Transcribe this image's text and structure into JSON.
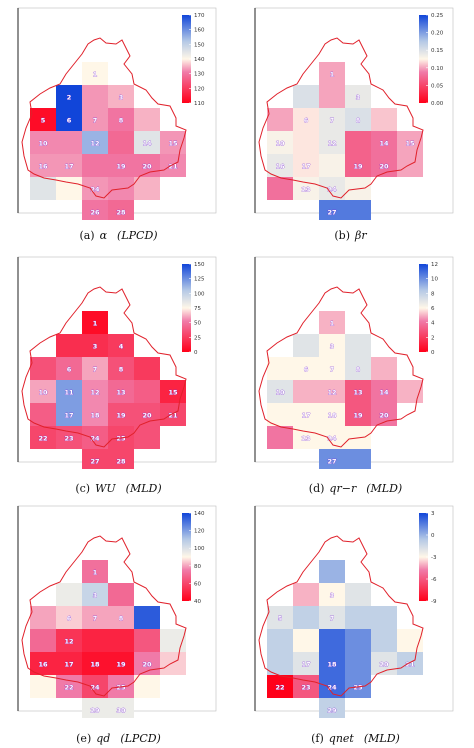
{
  "chart_data": [
    {
      "type": "heatmap",
      "panel": "a",
      "caption": {
        "tag": "(a)",
        "symbol": "α",
        "unit": "(LPCD)"
      },
      "colorbar": {
        "min": 110,
        "max": 170,
        "ticks": [
          "170",
          "160",
          "150",
          "140",
          "130",
          "120",
          "110"
        ]
      },
      "cells": [
        {
          "row": 0,
          "col": 2,
          "value": 140,
          "label": "1"
        },
        {
          "row": 1,
          "col": 1,
          "value": 170,
          "label": "2"
        },
        {
          "row": 1,
          "col": 2,
          "value": 133
        },
        {
          "row": 1,
          "col": 3,
          "value": 135,
          "label": "3"
        },
        {
          "row": 2,
          "col": 0,
          "value": 112,
          "label": "5"
        },
        {
          "row": 2,
          "col": 1,
          "value": 170,
          "label": "6"
        },
        {
          "row": 2,
          "col": 2,
          "value": 133,
          "label": "7"
        },
        {
          "row": 2,
          "col": 3,
          "value": 130,
          "label": "8"
        },
        {
          "row": 2,
          "col": 4,
          "value": 135
        },
        {
          "row": 3,
          "col": 0,
          "value": 132,
          "label": "10"
        },
        {
          "row": 3,
          "col": 1,
          "value": 132
        },
        {
          "row": 3,
          "col": 2,
          "value": 155,
          "label": "12"
        },
        {
          "row": 3,
          "col": 3,
          "value": 128
        },
        {
          "row": 3,
          "col": 4,
          "value": 145,
          "label": "14"
        },
        {
          "row": 3,
          "col": 5,
          "value": 133,
          "label": "15"
        },
        {
          "row": 4,
          "col": 0,
          "value": 133,
          "label": "16"
        },
        {
          "row": 4,
          "col": 1,
          "value": 133,
          "label": "17"
        },
        {
          "row": 4,
          "col": 2,
          "value": 130
        },
        {
          "row": 4,
          "col": 3,
          "value": 130,
          "label": "19"
        },
        {
          "row": 4,
          "col": 4,
          "value": 130,
          "label": "20"
        },
        {
          "row": 4,
          "col": 5,
          "value": 132,
          "label": "21"
        },
        {
          "row": 5,
          "col": 0,
          "value": 145
        },
        {
          "row": 5,
          "col": 1,
          "value": 140
        },
        {
          "row": 5,
          "col": 2,
          "value": 133,
          "label": "24"
        },
        {
          "row": 5,
          "col": 3,
          "value": 132
        },
        {
          "row": 5,
          "col": 4,
          "value": 135
        },
        {
          "row": 6,
          "col": 2,
          "value": 130,
          "label": "26"
        },
        {
          "row": 6,
          "col": 3,
          "value": 128,
          "label": "28"
        }
      ]
    },
    {
      "type": "heatmap",
      "panel": "b",
      "caption": {
        "tag": "(b)",
        "symbol": "βr",
        "unit": ""
      },
      "colorbar": {
        "min": 0,
        "max": 0.25,
        "ticks": [
          "0.25",
          "0.20",
          "0.15",
          "0.10",
          "0.05",
          "0.00"
        ]
      },
      "cells": [
        {
          "row": 0,
          "col": 2,
          "value": 0.1,
          "label": "1"
        },
        {
          "row": 1,
          "col": 1,
          "value": 0.15
        },
        {
          "row": 1,
          "col": 2,
          "value": 0.1
        },
        {
          "row": 1,
          "col": 3,
          "value": 0.14,
          "label": "3"
        },
        {
          "row": 2,
          "col": 0,
          "value": 0.1
        },
        {
          "row": 2,
          "col": 1,
          "value": 0.12,
          "label": "6"
        },
        {
          "row": 2,
          "col": 2,
          "value": 0.14,
          "label": "7"
        },
        {
          "row": 2,
          "col": 3,
          "value": 0.15,
          "label": "8"
        },
        {
          "row": 2,
          "col": 4,
          "value": 0.11
        },
        {
          "row": 3,
          "col": 0,
          "value": 0.13,
          "label": "10"
        },
        {
          "row": 3,
          "col": 1,
          "value": 0.12
        },
        {
          "row": 3,
          "col": 2,
          "value": 0.14,
          "label": "12"
        },
        {
          "row": 3,
          "col": 3,
          "value": 0.07
        },
        {
          "row": 3,
          "col": 4,
          "value": 0.08,
          "label": "14"
        },
        {
          "row": 3,
          "col": 5,
          "value": 0.1,
          "label": "15"
        },
        {
          "row": 4,
          "col": 0,
          "value": 0.14,
          "label": "16"
        },
        {
          "row": 4,
          "col": 1,
          "value": 0.12,
          "label": "17"
        },
        {
          "row": 4,
          "col": 2,
          "value": 0.13
        },
        {
          "row": 4,
          "col": 3,
          "value": 0.07,
          "label": "19"
        },
        {
          "row": 4,
          "col": 4,
          "value": 0.08,
          "label": "20"
        },
        {
          "row": 4,
          "col": 5,
          "value": 0.1
        },
        {
          "row": 5,
          "col": 0,
          "value": 0.08
        },
        {
          "row": 5,
          "col": 1,
          "value": 0.13,
          "label": "23"
        },
        {
          "row": 5,
          "col": 2,
          "value": 0.14,
          "label": "24"
        },
        {
          "row": 5,
          "col": 3,
          "value": 0.13
        },
        {
          "row": 6,
          "col": 2,
          "value": 0.22,
          "label": "27"
        },
        {
          "row": 6,
          "col": 3,
          "value": 0.22
        }
      ]
    },
    {
      "type": "heatmap",
      "panel": "c",
      "caption": {
        "tag": "(c)",
        "symbol": "WU",
        "unit": "(MLD)"
      },
      "colorbar": {
        "min": 0,
        "max": 150,
        "ticks": [
          "150",
          "125",
          "100",
          "75",
          "50",
          "25",
          "0"
        ]
      },
      "cells": [
        {
          "row": 0,
          "col": 2,
          "value": 5,
          "label": "1"
        },
        {
          "row": 1,
          "col": 1,
          "value": 20
        },
        {
          "row": 1,
          "col": 2,
          "value": 20,
          "label": "3"
        },
        {
          "row": 1,
          "col": 3,
          "value": 25,
          "label": "4"
        },
        {
          "row": 2,
          "col": 0,
          "value": 35
        },
        {
          "row": 2,
          "col": 1,
          "value": 45,
          "label": "6"
        },
        {
          "row": 2,
          "col": 2,
          "value": 60,
          "label": "7"
        },
        {
          "row": 2,
          "col": 3,
          "value": 35,
          "label": "8"
        },
        {
          "row": 2,
          "col": 4,
          "value": 25
        },
        {
          "row": 3,
          "col": 0,
          "value": 60,
          "label": "10"
        },
        {
          "row": 3,
          "col": 1,
          "value": 120,
          "label": "11"
        },
        {
          "row": 3,
          "col": 2,
          "value": 55,
          "label": "12"
        },
        {
          "row": 3,
          "col": 3,
          "value": 45,
          "label": "13"
        },
        {
          "row": 3,
          "col": 4,
          "value": 40
        },
        {
          "row": 3,
          "col": 5,
          "value": 15,
          "label": "15"
        },
        {
          "row": 4,
          "col": 0,
          "value": 40
        },
        {
          "row": 4,
          "col": 1,
          "value": 120,
          "label": "17"
        },
        {
          "row": 4,
          "col": 2,
          "value": 55,
          "label": "18"
        },
        {
          "row": 4,
          "col": 3,
          "value": 35,
          "label": "19"
        },
        {
          "row": 4,
          "col": 4,
          "value": 35,
          "label": "20"
        },
        {
          "row": 4,
          "col": 5,
          "value": 30,
          "label": "21"
        },
        {
          "row": 5,
          "col": 0,
          "value": 30,
          "label": "22"
        },
        {
          "row": 5,
          "col": 1,
          "value": 35,
          "label": "23"
        },
        {
          "row": 5,
          "col": 2,
          "value": 40,
          "label": "24"
        },
        {
          "row": 5,
          "col": 3,
          "value": 30,
          "label": "25"
        },
        {
          "row": 5,
          "col": 4,
          "value": 35
        },
        {
          "row": 6,
          "col": 2,
          "value": 30,
          "label": "27"
        },
        {
          "row": 6,
          "col": 3,
          "value": 30,
          "label": "28"
        }
      ]
    },
    {
      "type": "heatmap",
      "panel": "d",
      "caption": {
        "tag": "(d)",
        "symbol": "qr−r",
        "unit": "(MLD)"
      },
      "colorbar": {
        "min": 0,
        "max": 12,
        "ticks": [
          "12",
          "10",
          "8",
          "6",
          "4",
          "2",
          "0"
        ]
      },
      "cells": [
        {
          "row": 0,
          "col": 2,
          "value": 5,
          "label": "1"
        },
        {
          "row": 1,
          "col": 1,
          "value": 7
        },
        {
          "row": 1,
          "col": 2,
          "value": 6,
          "label": "3"
        },
        {
          "row": 1,
          "col": 3,
          "value": 7
        },
        {
          "row": 2,
          "col": 0,
          "value": 6
        },
        {
          "row": 2,
          "col": 1,
          "value": 6,
          "label": "6"
        },
        {
          "row": 2,
          "col": 2,
          "value": 6,
          "label": "7"
        },
        {
          "row": 2,
          "col": 3,
          "value": 7,
          "label": "8"
        },
        {
          "row": 2,
          "col": 4,
          "value": 5
        },
        {
          "row": 3,
          "col": 0,
          "value": 7,
          "label": "10"
        },
        {
          "row": 3,
          "col": 1,
          "value": 5
        },
        {
          "row": 3,
          "col": 2,
          "value": 5,
          "label": "12"
        },
        {
          "row": 3,
          "col": 3,
          "value": 3,
          "label": "13"
        },
        {
          "row": 3,
          "col": 4,
          "value": 4,
          "label": "14"
        },
        {
          "row": 3,
          "col": 5,
          "value": 5
        },
        {
          "row": 4,
          "col": 0,
          "value": 6
        },
        {
          "row": 4,
          "col": 1,
          "value": 6,
          "label": "17"
        },
        {
          "row": 4,
          "col": 2,
          "value": 6,
          "label": "18"
        },
        {
          "row": 4,
          "col": 3,
          "value": 3,
          "label": "19"
        },
        {
          "row": 4,
          "col": 4,
          "value": 4,
          "label": "20"
        },
        {
          "row": 5,
          "col": 0,
          "value": 4
        },
        {
          "row": 5,
          "col": 1,
          "value": 6,
          "label": "23"
        },
        {
          "row": 5,
          "col": 2,
          "value": 6,
          "label": "24"
        },
        {
          "row": 5,
          "col": 3,
          "value": 6
        },
        {
          "row": 6,
          "col": 2,
          "value": 10,
          "label": "27"
        },
        {
          "row": 6,
          "col": 3,
          "value": 10
        }
      ]
    },
    {
      "type": "heatmap",
      "panel": "e",
      "caption": {
        "tag": "(e)",
        "symbol": "qd",
        "unit": "(LPCD)"
      },
      "colorbar": {
        "min": 40,
        "max": 140,
        "ticks": [
          "140",
          "120",
          "100",
          "80",
          "60",
          "40"
        ]
      },
      "cells": [
        {
          "row": 0,
          "col": 2,
          "value": 72,
          "label": "1"
        },
        {
          "row": 1,
          "col": 1,
          "value": 95
        },
        {
          "row": 1,
          "col": 2,
          "value": 105,
          "label": "3"
        },
        {
          "row": 1,
          "col": 3,
          "value": 70
        },
        {
          "row": 2,
          "col": 0,
          "value": 80
        },
        {
          "row": 2,
          "col": 1,
          "value": 85,
          "label": "6"
        },
        {
          "row": 2,
          "col": 2,
          "value": 80,
          "label": "7"
        },
        {
          "row": 2,
          "col": 3,
          "value": 80,
          "label": "8"
        },
        {
          "row": 2,
          "col": 4,
          "value": 135
        },
        {
          "row": 3,
          "col": 0,
          "value": 70
        },
        {
          "row": 3,
          "col": 1,
          "value": 55,
          "label": "12"
        },
        {
          "row": 3,
          "col": 2,
          "value": 50
        },
        {
          "row": 3,
          "col": 3,
          "value": 50
        },
        {
          "row": 3,
          "col": 4,
          "value": 65
        },
        {
          "row": 3,
          "col": 5,
          "value": 95
        },
        {
          "row": 4,
          "col": 0,
          "value": 50,
          "label": "16"
        },
        {
          "row": 4,
          "col": 1,
          "value": 50,
          "label": "17"
        },
        {
          "row": 4,
          "col": 2,
          "value": 45,
          "label": "18"
        },
        {
          "row": 4,
          "col": 3,
          "value": 45,
          "label": "19"
        },
        {
          "row": 4,
          "col": 4,
          "value": 75,
          "label": "20"
        },
        {
          "row": 4,
          "col": 5,
          "value": 85
        },
        {
          "row": 5,
          "col": 0,
          "value": 90
        },
        {
          "row": 5,
          "col": 1,
          "value": 75,
          "label": "22"
        },
        {
          "row": 5,
          "col": 2,
          "value": 60,
          "label": "24"
        },
        {
          "row": 5,
          "col": 3,
          "value": 75,
          "label": "25"
        },
        {
          "row": 5,
          "col": 4,
          "value": 90
        },
        {
          "row": 6,
          "col": 2,
          "value": 95,
          "label": "29"
        },
        {
          "row": 6,
          "col": 3,
          "value": 95,
          "label": "30"
        }
      ]
    },
    {
      "type": "heatmap",
      "panel": "f",
      "caption": {
        "tag": "(f)",
        "symbol": "qnet",
        "unit": "(MLD)"
      },
      "colorbar": {
        "min": -9,
        "max": 3,
        "ticks": [
          "3",
          "0",
          "-3",
          "-6",
          "-9"
        ]
      },
      "cells": [
        {
          "row": 0,
          "col": 2,
          "value": 0
        },
        {
          "row": 1,
          "col": 1,
          "value": -4
        },
        {
          "row": 1,
          "col": 2,
          "value": -3,
          "label": "3"
        },
        {
          "row": 1,
          "col": 3,
          "value": -2
        },
        {
          "row": 2,
          "col": 0,
          "value": -2,
          "label": "5"
        },
        {
          "row": 2,
          "col": 1,
          "value": -1
        },
        {
          "row": 2,
          "col": 2,
          "value": -2,
          "label": "7"
        },
        {
          "row": 2,
          "col": 3,
          "value": -1
        },
        {
          "row": 2,
          "col": 4,
          "value": -1
        },
        {
          "row": 3,
          "col": 0,
          "value": -1
        },
        {
          "row": 3,
          "col": 1,
          "value": -3
        },
        {
          "row": 3,
          "col": 2,
          "value": 2
        },
        {
          "row": 3,
          "col": 3,
          "value": 1
        },
        {
          "row": 3,
          "col": 4,
          "value": -1
        },
        {
          "row": 3,
          "col": 5,
          "value": -3
        },
        {
          "row": 4,
          "col": 0,
          "value": -1
        },
        {
          "row": 4,
          "col": 1,
          "value": -2,
          "label": "17"
        },
        {
          "row": 4,
          "col": 2,
          "value": 2,
          "label": "18"
        },
        {
          "row": 4,
          "col": 3,
          "value": 1
        },
        {
          "row": 4,
          "col": 4,
          "value": -2,
          "label": "20"
        },
        {
          "row": 4,
          "col": 5,
          "value": -1,
          "label": "21"
        },
        {
          "row": 5,
          "col": 0,
          "value": -9,
          "label": "22"
        },
        {
          "row": 5,
          "col": 1,
          "value": -6,
          "label": "23"
        },
        {
          "row": 5,
          "col": 2,
          "value": 2,
          "label": "24"
        },
        {
          "row": 5,
          "col": 3,
          "value": 1,
          "label": "25"
        },
        {
          "row": 6,
          "col": 2,
          "value": -1,
          "label": "29"
        }
      ]
    }
  ]
}
